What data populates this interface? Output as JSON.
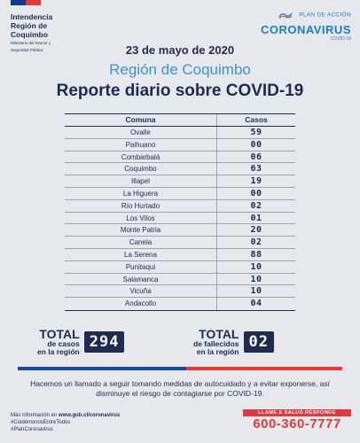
{
  "header": {
    "gov_name_lines": [
      "Intendencia",
      "Región de",
      "Coquimbo"
    ],
    "gov_sub_lines": [
      "Ministerio del Interior y",
      "Seguridad Pública"
    ],
    "plan_label": "PLAN DE ACCIÓN",
    "plan_title": "CORONAVIRUS",
    "plan_sub": "COVID-19"
  },
  "title": {
    "date": "23 de mayo de 2020",
    "region": "Región de Coquimbo",
    "report": "Reporte diario sobre COVID-19"
  },
  "table": {
    "headers": [
      "Comuna",
      "Casos"
    ],
    "rows": [
      {
        "comuna": "Ovalle",
        "casos": "59"
      },
      {
        "comuna": "Paihuano",
        "casos": "00"
      },
      {
        "comuna": "Combarbalá",
        "casos": "06"
      },
      {
        "comuna": "Coquimbo",
        "casos": "63"
      },
      {
        "comuna": "Illapel",
        "casos": "19"
      },
      {
        "comuna": "La Higuera",
        "casos": "00"
      },
      {
        "comuna": "Río Hurtado",
        "casos": "02"
      },
      {
        "comuna": "Los Vilos",
        "casos": "01"
      },
      {
        "comuna": "Monte Patria",
        "casos": "20"
      },
      {
        "comuna": "Canela",
        "casos": "02"
      },
      {
        "comuna": "La Serena",
        "casos": "88"
      },
      {
        "comuna": "Punitaqui",
        "casos": "10"
      },
      {
        "comuna": "Salamanca",
        "casos": "10"
      },
      {
        "comuna": "Vicuña",
        "casos": "10"
      },
      {
        "comuna": "Andacollo",
        "casos": "04"
      }
    ]
  },
  "totals": {
    "casos": {
      "line1": "TOTAL",
      "line2": "de casos",
      "line3": "en la región",
      "value": "294"
    },
    "fallecidos": {
      "line1": "TOTAL",
      "line2": "de fallecidos",
      "line3": "en la región",
      "value": "02"
    }
  },
  "message": "Hacemos un llamado a seguir tomando medidas de autocuidado y a evitar exponerse, así disminuye el riesgo de contagiarse por COVID-19.",
  "footer": {
    "more_info_prefix": "Más información en ",
    "more_info_url": "www.gob.cl/coronavirus",
    "hashtag1": "#CuidémonosEntreTodos",
    "hashtag2": "#PlanCoronavirus",
    "call_label": "LLAME A SALUD RESPONDE",
    "phone": "600-360-7777"
  },
  "colors": {
    "navy": "#1f2a52",
    "accent_blue": "#3a93d6",
    "red": "#e03a3e",
    "background": "#e6e8ec"
  }
}
